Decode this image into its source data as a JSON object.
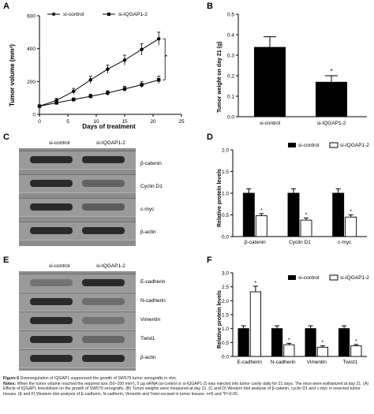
{
  "panels": {
    "A": {
      "label": "A",
      "xlabel": "Days of treatment",
      "ylabel": "Tumor volume (mm³)",
      "significance": "*",
      "xticks": [
        "0",
        "5",
        "10",
        "15",
        "20",
        "25"
      ],
      "yticks": [
        "0",
        "200",
        "400",
        "600"
      ],
      "legend": [
        "si-control",
        "si-IQGAP1-2"
      ]
    },
    "B": {
      "label": "B",
      "ylabel": "Tumor weight on day 21 (g)",
      "significance": "*",
      "yticks": [
        "0.0",
        "0.1",
        "0.2",
        "0.3",
        "0.4",
        "0.5"
      ],
      "categories": [
        "si-control",
        "si-IQGAP1-2"
      ]
    },
    "C": {
      "label": "C",
      "columns": [
        "si-control",
        "si-IQGAP1-2"
      ],
      "rows": [
        "β-catenin",
        "Cyclin D1",
        "c-myc",
        "β-actin"
      ]
    },
    "D": {
      "label": "D",
      "ylabel": "Relative protein levels",
      "legend": [
        "si-control",
        "si-IQGAP1-2"
      ],
      "yticks": [
        "0.0",
        "0.5",
        "1.0",
        "1.5",
        "2.0"
      ],
      "categories": [
        "β-catenin",
        "Cyclin D1",
        "c-myc"
      ],
      "significance": "*"
    },
    "E": {
      "label": "E",
      "columns": [
        "si-control",
        "si-IQGAP1-2"
      ],
      "rows": [
        "E-cadherin",
        "N-cadherin",
        "Vimentin",
        "Twist1",
        "β-actin"
      ]
    },
    "F": {
      "label": "F",
      "ylabel": "Relative protein levels",
      "legend": [
        "si-control",
        "si-IQGAP1-2"
      ],
      "yticks": [
        "0.0",
        "0.5",
        "1.0",
        "1.5",
        "2.0",
        "2.5",
        "3.0"
      ],
      "categories": [
        "E-cadherin",
        "N-cadherin",
        "Vimentin",
        "Twist1"
      ],
      "significance": "*"
    }
  },
  "caption": {
    "figure_label": "Figure 6",
    "figure_title": "Downregulation of IQGAP1 suppressed the growth of SW579 tumor xenografts in vivo.",
    "notes_label": "Notes:",
    "notes_text": "When the tumor volume reached the required size (50–100 mm³), 5 μg siRNA (si-control or si-IQGAP1-2) was injected into tumor cavity daily for 21 days. The mice were euthanized at day 21. (A) Effects of IQGAP1 knockdown on the growth of SW579 xenografts. (B) Tumor weights were measured at day 21. (C and D) Western blot analysis of β-catenin, cyclin D1 and c-myc in resected tumor tissues. (E and F) Western blot analysis of E-cadherin, N-cadherin, Vimentin and Twist excised in tumor tissues. n=5 and *P<0.05."
  },
  "chart_data": [
    {
      "type": "line",
      "x": [
        0,
        3,
        6,
        9,
        12,
        15,
        18,
        21
      ],
      "xlim": [
        0,
        25
      ],
      "ylim": [
        0,
        600
      ],
      "series": [
        {
          "name": "si-control",
          "values": [
            50,
            85,
            140,
            210,
            275,
            330,
            395,
            460
          ],
          "errors": [
            8,
            12,
            18,
            22,
            25,
            30,
            35,
            40
          ]
        },
        {
          "name": "si-IQGAP1-2",
          "values": [
            50,
            70,
            90,
            110,
            130,
            155,
            180,
            210
          ],
          "errors": [
            6,
            8,
            10,
            12,
            14,
            16,
            18,
            22
          ]
        }
      ]
    },
    {
      "type": "bar",
      "categories": [
        "si-control",
        "si-IQGAP1-2"
      ],
      "values": [
        0.34,
        0.17
      ],
      "errors": [
        0.05,
        0.03
      ],
      "ylim": [
        0,
        0.5
      ]
    },
    {
      "type": "bar",
      "categories": [
        "β-catenin",
        "Cyclin D1",
        "c-myc"
      ],
      "ylim": [
        0,
        2.0
      ],
      "series": [
        {
          "name": "si-control",
          "values": [
            1.0,
            1.0,
            1.0
          ],
          "errors": [
            0.1,
            0.1,
            0.1
          ]
        },
        {
          "name": "si-IQGAP1-2",
          "values": [
            0.48,
            0.38,
            0.45
          ],
          "errors": [
            0.05,
            0.05,
            0.05
          ]
        }
      ]
    },
    {
      "type": "bar",
      "categories": [
        "E-cadherin",
        "N-cadherin",
        "Vimentin",
        "Twist1"
      ],
      "ylim": [
        0,
        3.0
      ],
      "series": [
        {
          "name": "si-control",
          "values": [
            1.0,
            1.0,
            1.0,
            1.0
          ],
          "errors": [
            0.1,
            0.1,
            0.1,
            0.1
          ]
        },
        {
          "name": "si-IQGAP1-2",
          "values": [
            2.32,
            0.42,
            0.33,
            0.38
          ],
          "errors": [
            0.2,
            0.05,
            0.05,
            0.05
          ]
        }
      ]
    }
  ],
  "blots": {
    "C": [
      [
        1.0,
        1.0
      ],
      [
        1.0,
        0.5
      ],
      [
        1.0,
        0.55
      ],
      [
        1.0,
        1.0
      ]
    ],
    "E": [
      [
        0.35,
        1.0
      ],
      [
        1.0,
        0.4
      ],
      [
        1.0,
        0.35
      ],
      [
        1.0,
        0.45
      ],
      [
        1.0,
        1.0
      ]
    ]
  }
}
